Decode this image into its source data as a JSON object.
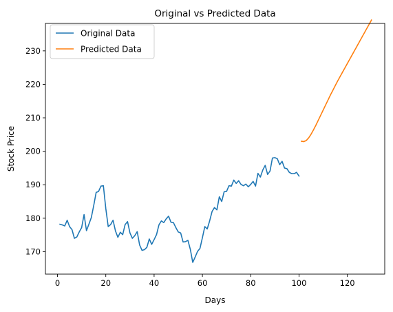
{
  "chart_data": {
    "type": "line",
    "title": "Original vs Predicted Data",
    "xlabel": "Days",
    "ylabel": "Stock Price",
    "xlim": [
      -5,
      135.5
    ],
    "ylim": [
      163.3,
      238.2
    ],
    "xticks": [
      0,
      20,
      40,
      60,
      80,
      100,
      120
    ],
    "yticks": [
      170,
      180,
      190,
      200,
      210,
      220,
      230
    ],
    "grid": false,
    "legend": "top-left",
    "series": [
      {
        "name": "Original Data",
        "color": "#1f77b4",
        "x": [
          1,
          2,
          3,
          4,
          5,
          6,
          7,
          8,
          9,
          10,
          11,
          12,
          13,
          14,
          15,
          16,
          17,
          18,
          19,
          20,
          21,
          22,
          23,
          24,
          25,
          26,
          27,
          28,
          29,
          30,
          31,
          32,
          33,
          34,
          35,
          36,
          37,
          38,
          39,
          40,
          41,
          42,
          43,
          44,
          45,
          46,
          47,
          48,
          49,
          50,
          51,
          52,
          53,
          54,
          55,
          56,
          57,
          58,
          59,
          60,
          61,
          62,
          63,
          64,
          65,
          66,
          67,
          68,
          69,
          70,
          71,
          72,
          73,
          74,
          75,
          76,
          77,
          78,
          79,
          80,
          81,
          82,
          83,
          84,
          85,
          86,
          87,
          88,
          89,
          90,
          91,
          92,
          93,
          94,
          95,
          96,
          97,
          98,
          99,
          100
        ],
        "y": [
          178.2,
          178.0,
          177.7,
          179.4,
          177.5,
          176.6,
          174.0,
          174.4,
          175.9,
          177.2,
          181.1,
          176.3,
          178.2,
          180.2,
          183.8,
          187.7,
          188.0,
          189.6,
          189.7,
          182.9,
          177.5,
          178.1,
          179.4,
          176.2,
          174.3,
          175.8,
          175.1,
          178.1,
          179.0,
          175.6,
          174.0,
          174.8,
          176.0,
          172.0,
          170.4,
          170.6,
          171.3,
          173.8,
          172.2,
          173.6,
          175.1,
          178.0,
          179.2,
          178.7,
          179.8,
          180.6,
          178.8,
          178.7,
          177.2,
          175.9,
          175.6,
          172.9,
          173.0,
          173.4,
          170.7,
          166.8,
          168.4,
          170.1,
          171.0,
          174.2,
          177.5,
          176.8,
          179.2,
          182.0,
          183.2,
          182.5,
          186.4,
          185.0,
          187.9,
          188.0,
          189.7,
          189.6,
          191.4,
          190.4,
          191.2,
          190.1,
          189.7,
          190.2,
          189.4,
          190.1,
          191.0,
          189.6,
          193.4,
          192.3,
          194.4,
          195.8,
          193.1,
          194.1,
          198.0,
          198.1,
          197.8,
          196.0,
          197.0,
          195.0,
          194.8,
          193.7,
          193.3,
          193.3,
          193.7,
          192.6
        ]
      },
      {
        "name": "Predicted Data",
        "color": "#ff7f0e",
        "x": [
          101,
          102,
          103,
          104,
          105,
          106,
          107,
          108,
          109,
          110,
          111,
          112,
          113,
          114,
          115,
          116,
          117,
          118,
          119,
          120,
          121,
          122,
          123,
          124,
          125,
          126,
          127,
          128,
          129,
          130
        ],
        "y": [
          203.0,
          202.9,
          203.2,
          204.0,
          205.1,
          206.4,
          207.8,
          209.3,
          210.8,
          212.3,
          213.8,
          215.3,
          216.8,
          218.2,
          219.6,
          221.0,
          222.3,
          223.6,
          224.9,
          226.2,
          227.5,
          228.8,
          230.1,
          231.4,
          232.7,
          234.0,
          235.3,
          236.6,
          237.9,
          239.2
        ]
      }
    ]
  }
}
